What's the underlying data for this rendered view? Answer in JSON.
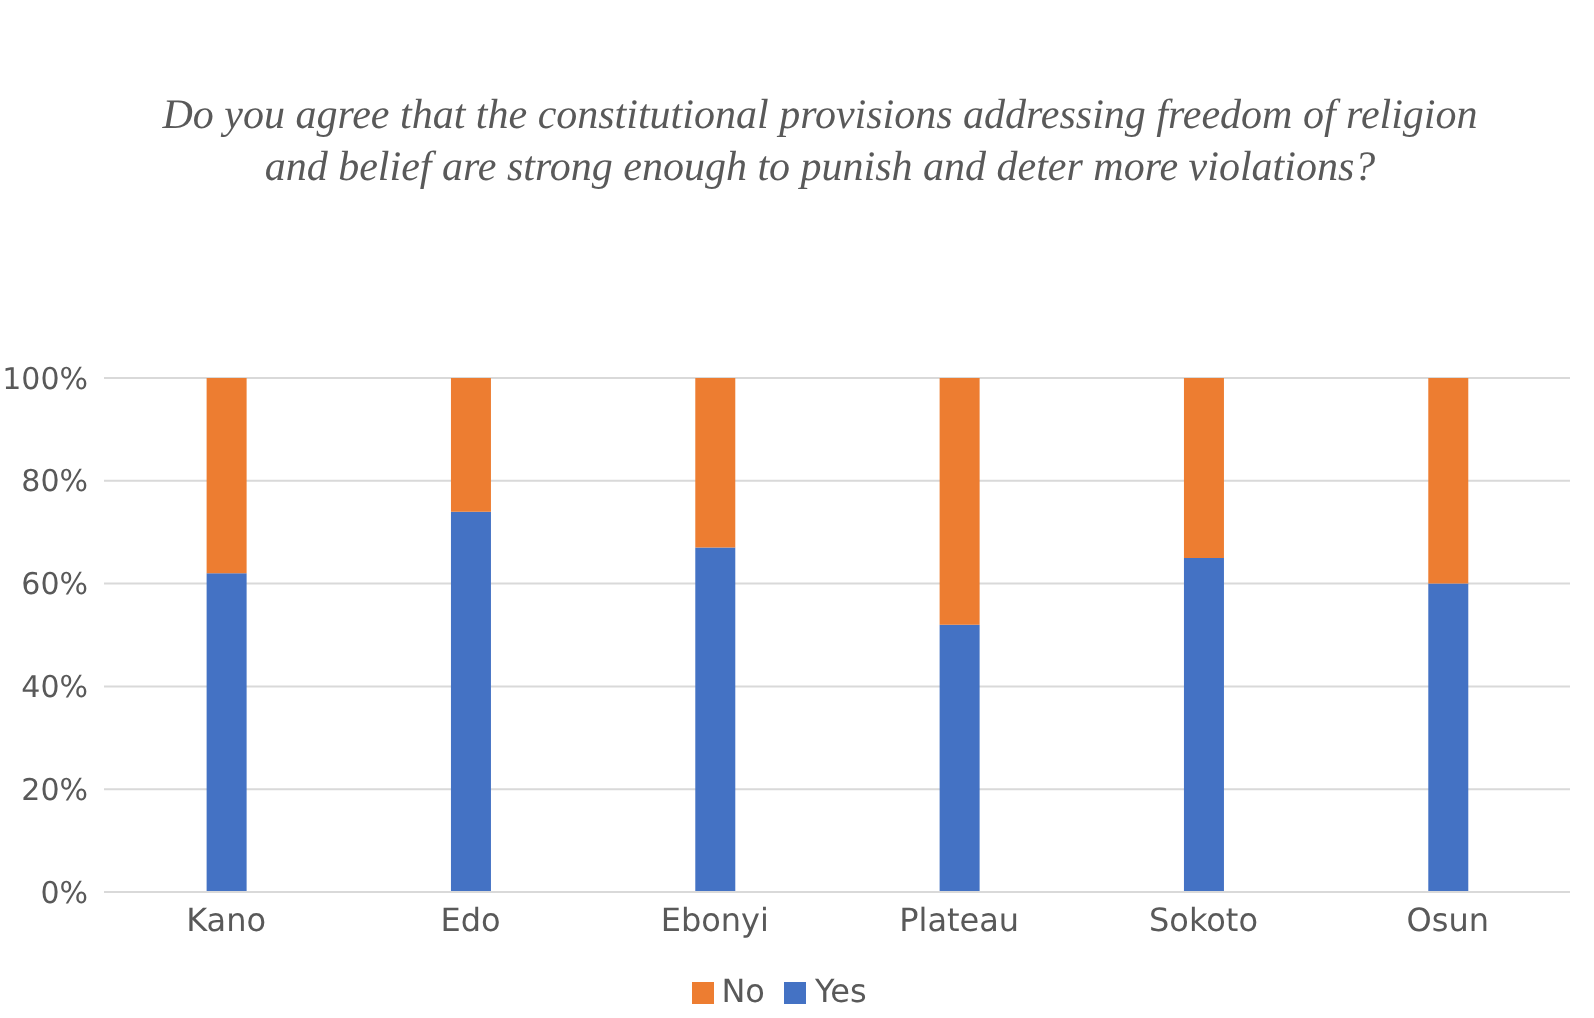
{
  "chart_data": {
    "type": "bar",
    "title": "Do you agree that the constitutional provisions addressing freedom of religion and belief are strong enough to punish and deter more violations?",
    "categories": [
      "Kano",
      "Edo",
      "Ebonyi",
      "Plateau",
      "Sokoto",
      "Osun"
    ],
    "stacked": true,
    "series": [
      {
        "name": "Yes",
        "color": "#4472c4",
        "values": [
          62,
          74,
          67,
          52,
          65,
          60
        ]
      },
      {
        "name": "No",
        "color": "#ed7d31",
        "values": [
          38,
          26,
          33,
          48,
          35,
          40
        ]
      }
    ],
    "ylim": [
      0,
      100
    ],
    "yticks": [
      {
        "value": 0,
        "label": "0%"
      },
      {
        "value": 20,
        "label": "20%"
      },
      {
        "value": 40,
        "label": "40%"
      },
      {
        "value": 60,
        "label": "60%"
      },
      {
        "value": 80,
        "label": "80%"
      },
      {
        "value": 100,
        "label": "100%"
      }
    ],
    "grid": "y",
    "legend": "bottom"
  }
}
